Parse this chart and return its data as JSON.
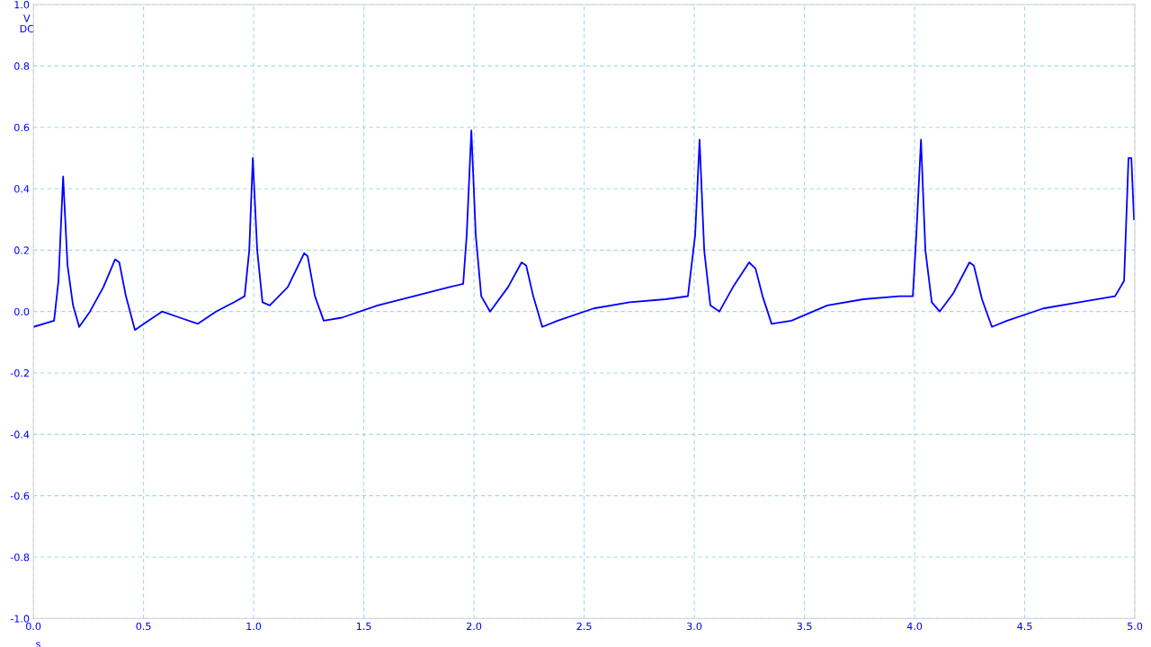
{
  "chart_data": {
    "type": "line",
    "xlabel": "s",
    "ylabel": "V\nDC",
    "x": [
      0,
      0.094,
      0.114,
      0.135,
      0.155,
      0.18,
      0.208,
      0.257,
      0.318,
      0.371,
      0.39,
      0.42,
      0.461,
      0.502,
      0.584,
      0.665,
      0.747,
      0.829,
      0.91,
      0.959,
      0.98,
      0.996,
      1.016,
      1.04,
      1.073,
      1.155,
      1.229,
      1.245,
      1.278,
      1.318,
      1.4,
      1.563,
      1.727,
      1.89,
      1.951,
      1.967,
      1.988,
      2.008,
      2.033,
      2.073,
      2.155,
      2.216,
      2.237,
      2.269,
      2.31,
      2.38,
      2.543,
      2.706,
      2.869,
      2.971,
      3.004,
      3.024,
      3.045,
      3.073,
      3.114,
      3.176,
      3.249,
      3.278,
      3.31,
      3.351,
      3.441,
      3.604,
      3.767,
      3.931,
      3.992,
      4.008,
      4.029,
      4.049,
      4.078,
      4.114,
      4.176,
      4.249,
      4.269,
      4.306,
      4.351,
      4.42,
      4.584,
      4.747,
      4.91,
      4.951,
      4.971,
      4.984,
      4.996
    ],
    "series": [
      {
        "color": "#0000ff",
        "values": [
          -0.05,
          -0.03,
          0.1,
          0.44,
          0.15,
          0.02,
          -0.05,
          0.0,
          0.08,
          0.17,
          0.16,
          0.05,
          -0.06,
          -0.04,
          0.0,
          -0.02,
          -0.04,
          0.0,
          0.03,
          0.05,
          0.2,
          0.5,
          0.2,
          0.03,
          0.02,
          0.08,
          0.19,
          0.18,
          0.05,
          -0.03,
          -0.02,
          0.02,
          0.05,
          0.08,
          0.09,
          0.25,
          0.59,
          0.25,
          0.05,
          0.0,
          0.08,
          0.16,
          0.15,
          0.05,
          -0.05,
          -0.03,
          0.01,
          0.03,
          0.04,
          0.05,
          0.25,
          0.56,
          0.2,
          0.02,
          0.0,
          0.08,
          0.16,
          0.14,
          0.05,
          -0.04,
          -0.03,
          0.02,
          0.04,
          0.05,
          0.05,
          0.25,
          0.56,
          0.2,
          0.03,
          0.0,
          0.06,
          0.16,
          0.15,
          0.04,
          -0.05,
          -0.03,
          0.01,
          0.03,
          0.05,
          0.1,
          0.5,
          0.5,
          0.3
        ]
      }
    ],
    "xlim": [
      0,
      5
    ],
    "xticks": [
      {
        "value": 0,
        "label": "0.0"
      },
      0.5,
      {
        "value": 1,
        "label": "1.0"
      },
      1.5,
      {
        "value": 2,
        "label": "2.0"
      },
      2.5,
      {
        "value": 3,
        "label": "3.0"
      },
      3.5,
      {
        "value": 4,
        "label": "4.0"
      },
      4.5,
      {
        "value": 5,
        "label": "5.0"
      }
    ],
    "ylim": [
      -1,
      1
    ],
    "yticks": [
      {
        "value": -1,
        "label": "-1.0"
      },
      -0.8,
      -0.6,
      -0.4,
      -0.2,
      {
        "value": 0,
        "label": "0.0"
      },
      0.2,
      0.4,
      0.6,
      0.8,
      {
        "value": 1,
        "label": "1.0"
      }
    ],
    "grid": true,
    "marker": "none",
    "line_style": "solid"
  }
}
